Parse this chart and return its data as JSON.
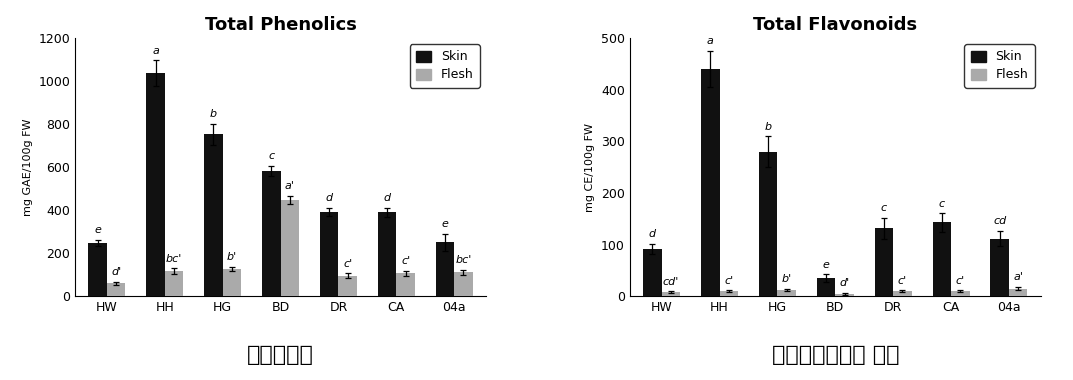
{
  "phenolics": {
    "title": "Total Phenolics",
    "ylabel": "mg GAE/100g FW",
    "korean_label": "쓑페놀함량",
    "ylim": [
      0,
      1200
    ],
    "yticks": [
      0,
      200,
      400,
      600,
      800,
      1000,
      1200
    ],
    "categories": [
      "HW",
      "HH",
      "HG",
      "BD",
      "DR",
      "CA",
      "04a"
    ],
    "skin_values": [
      248,
      1037,
      752,
      582,
      392,
      390,
      252
    ],
    "flesh_values": [
      60,
      118,
      128,
      447,
      97,
      108,
      112
    ],
    "skin_errors": [
      15,
      60,
      50,
      25,
      20,
      20,
      40
    ],
    "flesh_errors": [
      8,
      12,
      10,
      20,
      10,
      12,
      12
    ],
    "skin_labels": [
      "e",
      "a",
      "b",
      "c",
      "d",
      "d",
      "e"
    ],
    "flesh_labels": [
      "d'",
      "bc'",
      "b'",
      "a'",
      "c'",
      "c'",
      "bc'"
    ]
  },
  "flavonoids": {
    "title": "Total Flavonoids",
    "ylabel": "mg CE/100g FW",
    "korean_label": "쓑플라보노이드 함량",
    "ylim": [
      0,
      500
    ],
    "yticks": [
      0,
      100,
      200,
      300,
      400,
      500
    ],
    "categories": [
      "HW",
      "HH",
      "HG",
      "BD",
      "DR",
      "CA",
      "04a"
    ],
    "skin_values": [
      92,
      440,
      280,
      35,
      132,
      143,
      112
    ],
    "flesh_values": [
      8,
      10,
      13,
      5,
      10,
      10,
      15
    ],
    "skin_errors": [
      10,
      35,
      30,
      8,
      20,
      18,
      15
    ],
    "flesh_errors": [
      2,
      2,
      2,
      2,
      2,
      2,
      3
    ],
    "skin_labels": [
      "d",
      "a",
      "b",
      "e",
      "c",
      "c",
      "cd"
    ],
    "flesh_labels": [
      "cd'",
      "c'",
      "b'",
      "d'",
      "c'",
      "c'",
      "a'"
    ]
  },
  "bar_width": 0.32,
  "skin_color": "#111111",
  "flesh_color": "#aaaaaa",
  "legend_labels": [
    "Skin",
    "Flesh"
  ],
  "sig_fontsize": 8,
  "title_fontsize": 13,
  "axis_label_fontsize": 8,
  "tick_fontsize": 9,
  "korean_fontsize": 16
}
